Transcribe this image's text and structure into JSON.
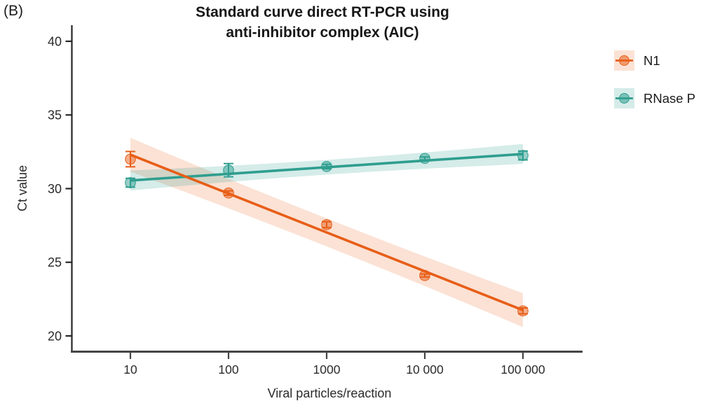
{
  "panel_label": "(B)",
  "title": {
    "line1": "Standard curve direct RT-PCR using",
    "line2": "anti-inhibitor complex (AIC)"
  },
  "chart_data": {
    "type": "scatter",
    "x_scale": "log10",
    "categories": [
      "10",
      "100",
      "1000",
      "10 000",
      "100 000"
    ],
    "x_log10": [
      1,
      2,
      3,
      4,
      5
    ],
    "xlabel": "Viral particles/reaction",
    "ylabel": "Ct value",
    "yticks": [
      20,
      25,
      30,
      35,
      40
    ],
    "ylim": [
      19.9,
      41.1
    ],
    "grid": "off",
    "legend_position": "right",
    "series": [
      {
        "name": "N1",
        "color": "#E85E17",
        "band_color": "rgba(232,94,23,0.18)",
        "values": [
          32.0,
          29.7,
          27.55,
          24.1,
          21.7
        ],
        "errors": [
          0.52,
          0.15,
          0.2,
          0.1,
          0.2
        ],
        "trend": {
          "start_ct": 32.3,
          "end_ct": 21.75
        },
        "band": {
          "mid_halfwidth": 0.95,
          "end_halfwidth": 1.15
        }
      },
      {
        "name": "RNase P",
        "color": "#2F9E8F",
        "band_color": "rgba(47,158,143,0.20)",
        "values": [
          30.4,
          31.25,
          31.5,
          32.05,
          32.25
        ],
        "errors": [
          0.3,
          0.45,
          0.15,
          0.1,
          0.3
        ],
        "trend": {
          "start_ct": 30.55,
          "end_ct": 32.35
        },
        "band": {
          "mid_halfwidth": 0.5,
          "end_halfwidth": 0.68
        }
      }
    ]
  }
}
